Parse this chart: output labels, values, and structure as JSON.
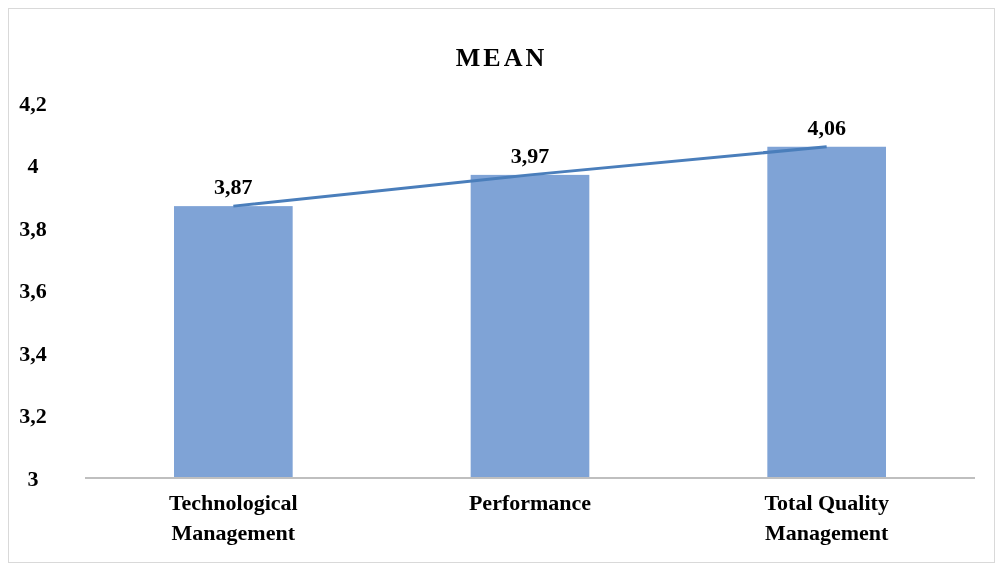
{
  "chart_data": {
    "type": "bar",
    "title": "MEAN",
    "categories": [
      "Technological Management",
      "Performance",
      "Total Quality Management"
    ],
    "series": [
      {
        "color": "#7fa3d6",
        "values": [
          3.87,
          3.97,
          4.06
        ],
        "value_labels": [
          "3,87",
          "3,97",
          "4,06"
        ]
      },
      {
        "type": "line",
        "color": "#4a7ebb",
        "values": [
          3.87,
          3.97,
          4.06
        ]
      }
    ],
    "ylim": [
      3,
      4.2
    ],
    "yticks": [
      3,
      {
        "value": 3.2,
        "label": "3,2"
      },
      {
        "value": 3.4,
        "label": "3,4"
      },
      {
        "value": 3.6,
        "label": "3,6"
      },
      {
        "value": 3.8,
        "label": "3,8"
      },
      4,
      {
        "value": 4.2,
        "label": "4,2"
      }
    ],
    "grid": false,
    "marker": "none"
  }
}
